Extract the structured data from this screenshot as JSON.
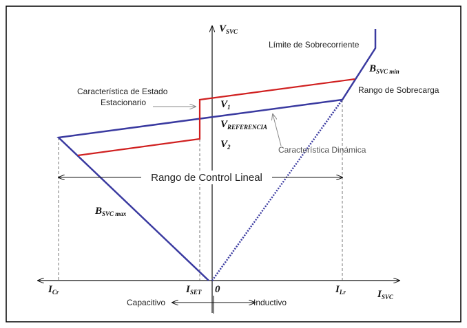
{
  "axes": {
    "vertical": {
      "main": "V",
      "sub": "SVC"
    },
    "horizontal": {
      "main": "I",
      "sub": "SVC"
    },
    "origin": "0"
  },
  "labels": {
    "overcurrent_limit": "Límite de Sobrecorriente",
    "bsvc_min": {
      "main": "B",
      "sub": "SVC min"
    },
    "overload_range": "Rango de Sobrecarga",
    "steady_state": [
      "Característica de Estado",
      "Estacionario"
    ],
    "v1": {
      "main": "V",
      "sub": "1"
    },
    "vref": {
      "main": "V",
      "sub": "REFERENCIA"
    },
    "v2": {
      "main": "V",
      "sub": "2"
    },
    "dynamic": "Característica Dinámica",
    "linear_range": "Rango de Control Lineal",
    "bsvc_max": {
      "main": "B",
      "sub": "SVC max"
    },
    "icr": {
      "main": "I",
      "sub": "Cr"
    },
    "iset": {
      "main": "I",
      "sub": "SET"
    },
    "ilr": {
      "main": "I",
      "sub": "Lr"
    },
    "capacitive": "Capacitivo",
    "inductive": "Inductivo"
  }
}
